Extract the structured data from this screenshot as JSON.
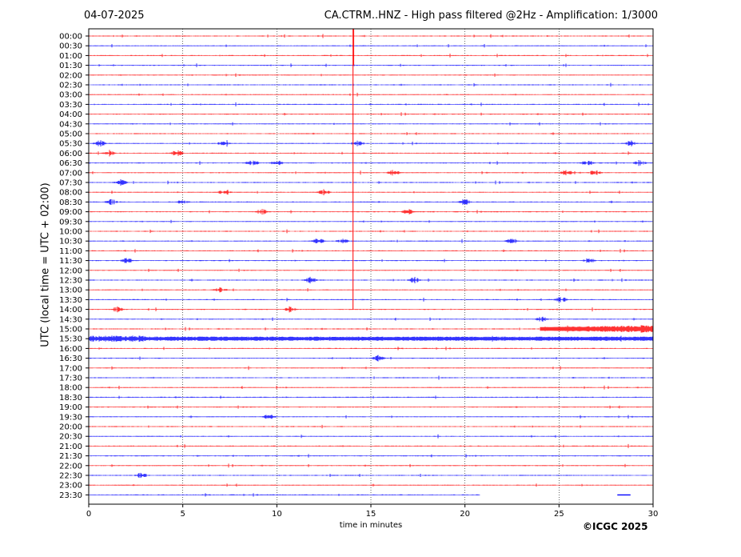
{
  "header": {
    "date": "04-07-2025",
    "title": "CA.CTRM..HNZ - High pass filtered @2Hz - Amplification: 1/3000"
  },
  "footer": {
    "copyright": "©ICGC 2025"
  },
  "chart_data": {
    "type": "line",
    "title": "CA.CTRM..HNZ - High pass filtered @2Hz - Amplification: 1/3000",
    "xlabel": "time in minutes",
    "ylabel": "UTC (local time = UTC + 02:00)",
    "xlim": [
      0,
      30
    ],
    "xticks": [
      "0",
      "5",
      "10",
      "15",
      "20",
      "25",
      "30"
    ],
    "grid": "vertical dotted lines at 5-minute intervals",
    "colors": {
      "even_rows": "#ff0000",
      "odd_rows": "#0000ff",
      "frame": "#000000"
    },
    "rows": [
      "00:00",
      "00:30",
      "01:00",
      "01:30",
      "02:00",
      "02:30",
      "03:00",
      "03:30",
      "04:00",
      "04:30",
      "05:00",
      "05:30",
      "06:00",
      "06:30",
      "07:00",
      "07:30",
      "08:00",
      "08:30",
      "09:00",
      "09:30",
      "10:00",
      "10:30",
      "11:00",
      "11:30",
      "12:00",
      "12:30",
      "13:00",
      "13:30",
      "14:00",
      "14:30",
      "15:00",
      "15:30",
      "16:00",
      "16:30",
      "17:00",
      "17:30",
      "18:00",
      "18:30",
      "19:00",
      "19:30",
      "20:00",
      "20:30",
      "21:00",
      "21:30",
      "22:00",
      "22:30",
      "23:00",
      "23:30"
    ],
    "last_row_end_minute": 20.8,
    "events": [
      {
        "row": "00:00",
        "minute": 14.05,
        "note": "large event trace extends through 14:00 row"
      },
      {
        "row": "05:30",
        "minute": 0.6
      },
      {
        "row": "05:30",
        "minute": 7.2
      },
      {
        "row": "05:30",
        "minute": 14.3
      },
      {
        "row": "05:30",
        "minute": 28.8
      },
      {
        "row": "06:00",
        "minute": 1.1
      },
      {
        "row": "06:00",
        "minute": 4.7
      },
      {
        "row": "06:30",
        "minute": 8.7
      },
      {
        "row": "06:30",
        "minute": 10.0
      },
      {
        "row": "06:30",
        "minute": 26.5
      },
      {
        "row": "06:30",
        "minute": 29.3
      },
      {
        "row": "07:00",
        "minute": 16.2
      },
      {
        "row": "07:00",
        "minute": 25.4
      },
      {
        "row": "07:00",
        "minute": 26.9
      },
      {
        "row": "07:30",
        "minute": 1.7
      },
      {
        "row": "08:00",
        "minute": 7.2
      },
      {
        "row": "08:00",
        "minute": 12.5
      },
      {
        "row": "08:30",
        "minute": 1.2
      },
      {
        "row": "08:30",
        "minute": 5.0
      },
      {
        "row": "08:30",
        "minute": 20.0
      },
      {
        "row": "09:00",
        "minute": 9.2
      },
      {
        "row": "09:00",
        "minute": 17.0
      },
      {
        "row": "10:30",
        "minute": 12.2
      },
      {
        "row": "10:30",
        "minute": 13.5
      },
      {
        "row": "10:30",
        "minute": 22.5
      },
      {
        "row": "11:30",
        "minute": 2.0
      },
      {
        "row": "11:30",
        "minute": 26.6
      },
      {
        "row": "12:30",
        "minute": 11.8
      },
      {
        "row": "12:30",
        "minute": 17.3
      },
      {
        "row": "13:00",
        "minute": 7.0
      },
      {
        "row": "13:30",
        "minute": 25.1
      },
      {
        "row": "14:00",
        "minute": 1.5
      },
      {
        "row": "14:00",
        "minute": 10.7
      },
      {
        "row": "14:30",
        "minute": 24.1
      },
      {
        "row": "15:00",
        "minute": 28.5,
        "note": "strong noise from ~24 to 30"
      },
      {
        "row": "15:30",
        "minute": 2.0,
        "note": "noise burst whole row"
      },
      {
        "row": "16:30",
        "minute": 15.4
      },
      {
        "row": "19:30",
        "minute": 9.6
      },
      {
        "row": "22:30",
        "minute": 2.8
      }
    ]
  }
}
